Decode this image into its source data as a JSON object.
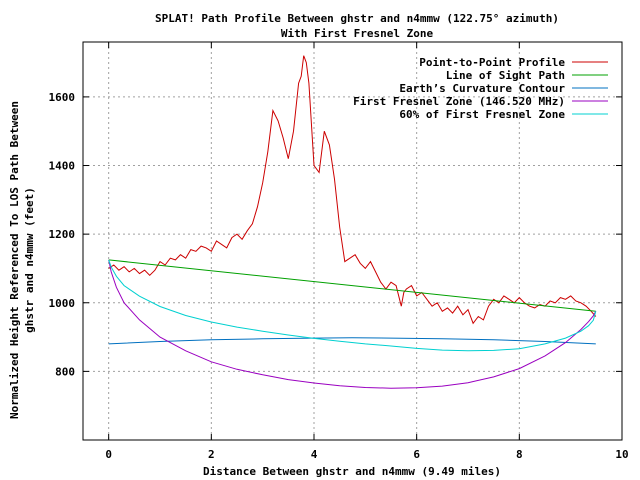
{
  "chart_data": {
    "type": "line",
    "title": "SPLAT! Path Profile Between ghstr and n4mmw (122.75° azimuth)",
    "subtitle": "With First Fresnel Zone",
    "xlabel": "Distance Between ghstr and n4mmw (9.49 miles)",
    "ylabel_line1": "Normalized Height Referenced To LOS Path Between",
    "ylabel_line2": "ghstr and n4mmw (feet)",
    "xlim": [
      -0.5,
      10
    ],
    "ylim": [
      600,
      1760
    ],
    "x_ticks": [
      0,
      2,
      4,
      6,
      8,
      10
    ],
    "y_ticks": [
      800,
      1000,
      1200,
      1400,
      1600
    ],
    "grid": true,
    "legend_position": "top-right",
    "series": [
      {
        "name": "Point-to-Point Profile",
        "color": "#cc0000",
        "x": [
          0,
          0.1,
          0.2,
          0.3,
          0.4,
          0.5,
          0.6,
          0.7,
          0.8,
          0.9,
          1.0,
          1.1,
          1.2,
          1.3,
          1.4,
          1.5,
          1.6,
          1.7,
          1.8,
          1.9,
          2.0,
          2.1,
          2.2,
          2.3,
          2.4,
          2.5,
          2.6,
          2.7,
          2.8,
          2.9,
          3.0,
          3.1,
          3.2,
          3.3,
          3.4,
          3.5,
          3.6,
          3.7,
          3.75,
          3.8,
          3.85,
          3.9,
          4.0,
          4.1,
          4.2,
          4.3,
          4.4,
          4.5,
          4.6,
          4.7,
          4.8,
          4.9,
          5.0,
          5.1,
          5.2,
          5.3,
          5.4,
          5.5,
          5.6,
          5.7,
          5.75,
          5.8,
          5.9,
          6.0,
          6.1,
          6.2,
          6.3,
          6.4,
          6.5,
          6.6,
          6.7,
          6.8,
          6.9,
          7.0,
          7.1,
          7.2,
          7.3,
          7.4,
          7.5,
          7.6,
          7.7,
          7.8,
          7.9,
          8.0,
          8.1,
          8.2,
          8.3,
          8.4,
          8.5,
          8.6,
          8.7,
          8.8,
          8.9,
          9.0,
          9.1,
          9.2,
          9.3,
          9.4,
          9.49
        ],
        "y": [
          1100,
          1110,
          1095,
          1105,
          1090,
          1100,
          1085,
          1095,
          1080,
          1095,
          1120,
          1110,
          1130,
          1125,
          1140,
          1130,
          1155,
          1150,
          1165,
          1160,
          1150,
          1180,
          1170,
          1160,
          1190,
          1200,
          1185,
          1210,
          1230,
          1280,
          1350,
          1440,
          1560,
          1530,
          1480,
          1420,
          1500,
          1640,
          1660,
          1720,
          1700,
          1640,
          1400,
          1380,
          1500,
          1460,
          1360,
          1220,
          1120,
          1130,
          1140,
          1115,
          1100,
          1120,
          1090,
          1060,
          1040,
          1060,
          1050,
          990,
          1030,
          1040,
          1050,
          1020,
          1030,
          1010,
          990,
          1000,
          975,
          985,
          970,
          990,
          965,
          980,
          940,
          960,
          950,
          990,
          1010,
          1000,
          1020,
          1010,
          1000,
          1015,
          1000,
          990,
          985,
          995,
          990,
          1005,
          1000,
          1015,
          1010,
          1020,
          1005,
          1000,
          990,
          975,
          960
        ]
      },
      {
        "name": "Line of Sight Path",
        "color": "#00a000",
        "x": [
          0,
          9.49
        ],
        "y": [
          1125,
          975
        ]
      },
      {
        "name": "Earth’s Curvature Contour",
        "color": "#0070c0",
        "x": [
          0,
          1,
          2,
          3,
          4,
          4.745,
          5.5,
          6.5,
          7.5,
          8.5,
          9.49
        ],
        "y": [
          880,
          887,
          892,
          895,
          897,
          898,
          897,
          895,
          892,
          887,
          880
        ]
      },
      {
        "name": "First Fresnel Zone (146.520 MHz)",
        "color": "#9a00c0",
        "x": [
          0,
          0.05,
          0.15,
          0.3,
          0.6,
          1.0,
          1.5,
          2.0,
          2.5,
          3.0,
          3.5,
          4.0,
          4.5,
          5.0,
          5.5,
          6.0,
          6.5,
          7.0,
          7.5,
          8.0,
          8.5,
          8.9,
          9.2,
          9.35,
          9.44,
          9.49
        ],
        "y": [
          1125,
          1090,
          1045,
          1000,
          950,
          900,
          860,
          828,
          806,
          790,
          776,
          766,
          758,
          753,
          751,
          752,
          757,
          767,
          784,
          808,
          845,
          884,
          922,
          945,
          962,
          975
        ]
      },
      {
        "name": "60% of First Fresnel Zone",
        "color": "#00d0d0",
        "x": [
          0,
          0.05,
          0.15,
          0.3,
          0.6,
          1.0,
          1.5,
          2.0,
          2.5,
          3.0,
          3.5,
          4.0,
          4.5,
          5.0,
          5.5,
          6.0,
          6.5,
          7.0,
          7.5,
          8.0,
          8.5,
          8.9,
          9.2,
          9.35,
          9.44,
          9.49
        ],
        "y": [
          1125,
          1104,
          1077,
          1050,
          1019,
          989,
          963,
          944,
          929,
          917,
          906,
          896,
          888,
          880,
          874,
          867,
          862,
          860,
          861,
          866,
          880,
          897,
          917,
          933,
          949,
          975
        ]
      }
    ]
  }
}
